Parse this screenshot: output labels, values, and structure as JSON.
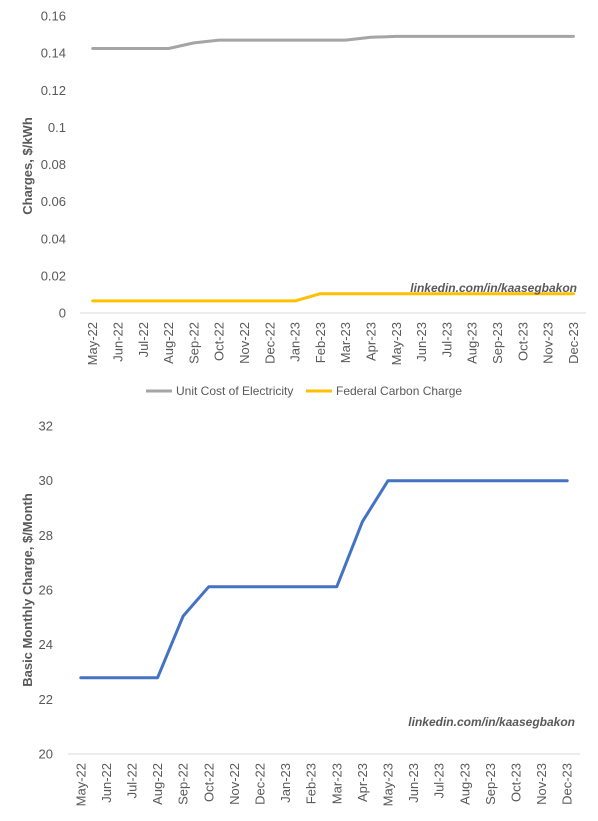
{
  "chart_data": [
    {
      "type": "line",
      "categories": [
        "May-22",
        "Jun-22",
        "Jul-22",
        "Aug-22",
        "Sep-22",
        "Oct-22",
        "Nov-22",
        "Dec-22",
        "Jan-23",
        "Feb-23",
        "Mar-23",
        "Apr-23",
        "May-23",
        "Jun-23",
        "Jul-23",
        "Aug-23",
        "Sep-23",
        "Oct-23",
        "Nov-23",
        "Dec-23"
      ],
      "series": [
        {
          "name": "Unit Cost of Electricity",
          "color": "#a5a5a5",
          "values": [
            0.1425,
            0.1425,
            0.1425,
            0.1425,
            0.1455,
            0.147,
            0.147,
            0.147,
            0.147,
            0.147,
            0.147,
            0.1485,
            0.149,
            0.149,
            0.149,
            0.149,
            0.149,
            0.149,
            0.149,
            0.149
          ]
        },
        {
          "name": "Federal Carbon Charge",
          "color": "#ffc000",
          "values": [
            0.0065,
            0.0065,
            0.0065,
            0.0065,
            0.0065,
            0.0065,
            0.0065,
            0.0065,
            0.0065,
            0.0104,
            0.0104,
            0.0104,
            0.0104,
            0.0104,
            0.0104,
            0.0104,
            0.0104,
            0.0104,
            0.0104,
            0.0104
          ]
        }
      ],
      "ylabel": "Charges, $/kWh",
      "ylim": [
        0,
        0.16
      ],
      "yticks": [
        "0",
        "0.02",
        "0.04",
        "0.06",
        "0.08",
        "0.1",
        "0.12",
        "0.14",
        "0.16"
      ],
      "grid": false,
      "legend": "bottom",
      "annotation": "linkedin.com/in/kaasegbakon"
    },
    {
      "type": "line",
      "categories": [
        "May-22",
        "Jun-22",
        "Jul-22",
        "Aug-22",
        "Sep-22",
        "Oct-22",
        "Nov-22",
        "Dec-22",
        "Jan-23",
        "Feb-23",
        "Mar-23",
        "Apr-23",
        "May-23",
        "Jun-23",
        "Jul-23",
        "Aug-23",
        "Sep-23",
        "Oct-23",
        "Nov-23",
        "Dec-23"
      ],
      "series": [
        {
          "color": "#4472c4",
          "values": [
            22.79,
            22.79,
            22.79,
            22.79,
            25.05,
            26.12,
            26.12,
            26.12,
            26.12,
            26.12,
            26.12,
            28.5,
            30.0,
            30.0,
            30.0,
            30.0,
            30.0,
            30.0,
            30.0,
            30.0
          ]
        }
      ],
      "ylabel": "Basic Monthly Charge, $/Month",
      "ylim": [
        20,
        32
      ],
      "yticks": [
        "20",
        "22",
        "24",
        "26",
        "28",
        "30",
        "32"
      ],
      "grid": false,
      "legend": "none",
      "annotation": "linkedin.com/in/kaasegbakon"
    }
  ]
}
